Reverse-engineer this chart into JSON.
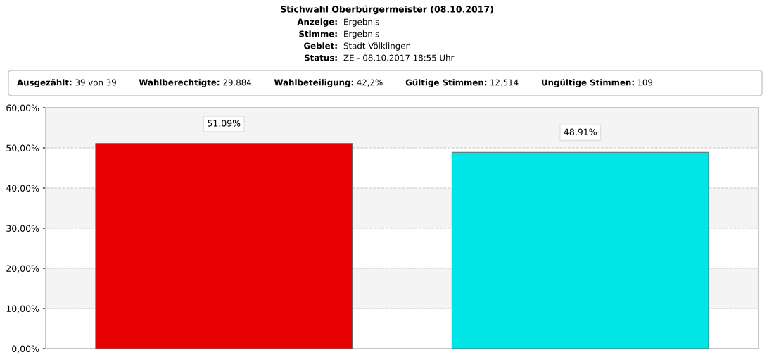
{
  "chart_data": {
    "type": "bar",
    "title": "Stichwahl Oberbürgermeister (08.10.2017)",
    "annotations": [
      "Anzeige: Ergebnis",
      "Stimme: Ergebnis",
      "Gebiet: Stadt Völklingen",
      "Status: ZE - 08.10.2017 18:55 Uhr",
      "Ausgezählt: 39 von 39",
      "Wahlberechtigte: 29.884",
      "Wahlbeteiligung: 42,2%",
      "Gültige Stimmen: 12.514",
      "Ungültige Stimmen: 109"
    ],
    "categories": [
      null,
      null
    ],
    "values": [
      51.09,
      48.91
    ],
    "colors": [
      "#e60000",
      "#00e5e5"
    ],
    "value_labels": [
      "51,09%",
      "48,91%"
    ],
    "ylim": [
      0,
      60
    ],
    "yticks": [
      {
        "value": 0,
        "label": "0,00%"
      },
      {
        "value": 10,
        "label": "10,00%"
      },
      {
        "value": 20,
        "label": "20,00%"
      },
      {
        "value": 30,
        "label": "30,00%"
      },
      {
        "value": 40,
        "label": "40,00%"
      },
      {
        "value": 50,
        "label": "50,00%"
      },
      {
        "value": 60,
        "label": "60,00%"
      }
    ],
    "bands": [
      {
        "axis": "y",
        "from": 10,
        "to": 20,
        "color": "#f4f4f4"
      },
      {
        "axis": "y",
        "from": 30,
        "to": 40,
        "color": "#f4f4f4"
      },
      {
        "axis": "y",
        "from": 50,
        "to": 60,
        "color": "#f4f4f4"
      }
    ],
    "grid": "y",
    "legend": false
  }
}
